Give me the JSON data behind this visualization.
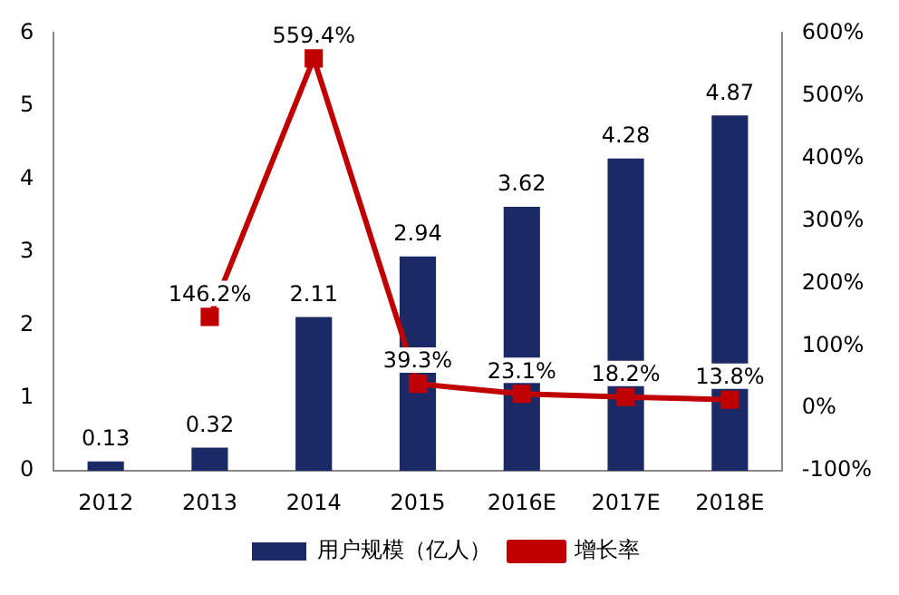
{
  "chart_data": {
    "type": "bar",
    "categories": [
      "2012",
      "2013",
      "2014",
      "2015",
      "2016E",
      "2017E",
      "2018E"
    ],
    "series": [
      {
        "name": "用户规模（亿人）",
        "color": "#1b2a66",
        "values": [
          0.13,
          0.32,
          2.11,
          2.94,
          3.62,
          4.28,
          4.87
        ],
        "value_labels": [
          "0.13",
          "0.32",
          "2.11",
          "2.94",
          "3.62",
          "4.28",
          "4.87"
        ]
      },
      {
        "name": "增长率",
        "type": "line",
        "axis": "y2",
        "color": "#c00000",
        "marker": "square",
        "values": [
          null,
          146.2,
          559.4,
          39.3,
          23.1,
          18.2,
          13.8
        ],
        "value_labels": [
          null,
          "146.2%",
          "559.4%",
          "39.3%",
          "23.1%",
          "18.2%",
          "13.8%"
        ]
      }
    ],
    "ylim": [
      0,
      6
    ],
    "yticks": [
      0,
      1,
      2,
      3,
      4,
      5,
      6
    ],
    "y2lim": [
      -100,
      600
    ],
    "y2ticks": [
      {
        "value": -100,
        "label": "-100%"
      },
      {
        "value": 0,
        "label": "0%"
      },
      {
        "value": 100,
        "label": "100%"
      },
      {
        "value": 200,
        "label": "200%"
      },
      {
        "value": 300,
        "label": "300%"
      },
      {
        "value": 400,
        "label": "400%"
      },
      {
        "value": 500,
        "label": "500%"
      },
      {
        "value": 600,
        "label": "600%"
      }
    ],
    "grid": false,
    "legend": "bottom"
  }
}
